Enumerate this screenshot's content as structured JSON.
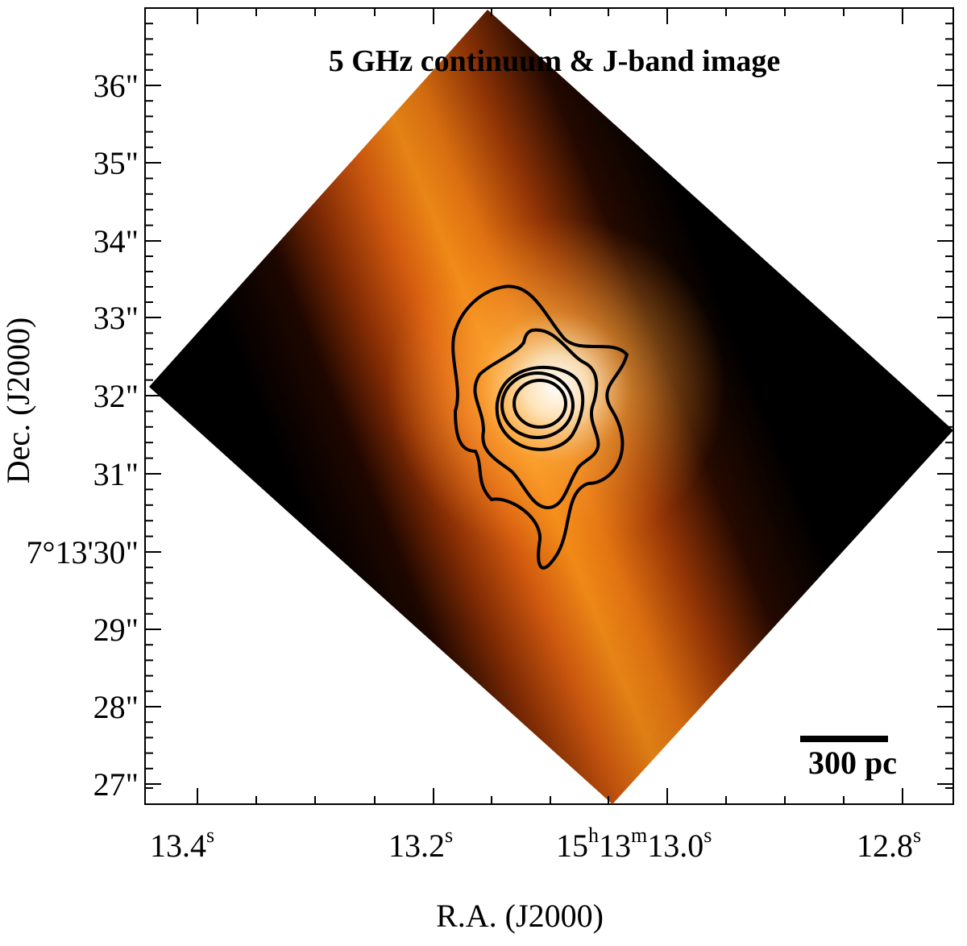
{
  "figure": {
    "title": "5 GHz continuum & J-band image",
    "x_axis_title": "R.A. (J2000)",
    "y_axis_title": "Dec. (J2000)",
    "x_ticks": [
      {
        "main": "13.4",
        "sup": "s"
      },
      {
        "main": "13.2",
        "sup": "s"
      },
      {
        "main": "15",
        "sup": "h",
        "main2": "13",
        "sup2": "m",
        "main3": "13.0",
        "sup3": "s"
      },
      {
        "main": "12.8",
        "sup": "s"
      }
    ],
    "y_ticks": [
      "36\"",
      "35\"",
      "34\"",
      "33\"",
      "32\"",
      "31\"",
      "7°13'30\"",
      "29\"",
      "28\"",
      "27\""
    ],
    "scale_bar_label": "300 pc",
    "colormap": {
      "low": "#000000",
      "mid": "#d04a05",
      "high": "#ffa020",
      "peak": "#ffffff"
    },
    "contour_color": "#000000",
    "contour_levels": 5
  }
}
